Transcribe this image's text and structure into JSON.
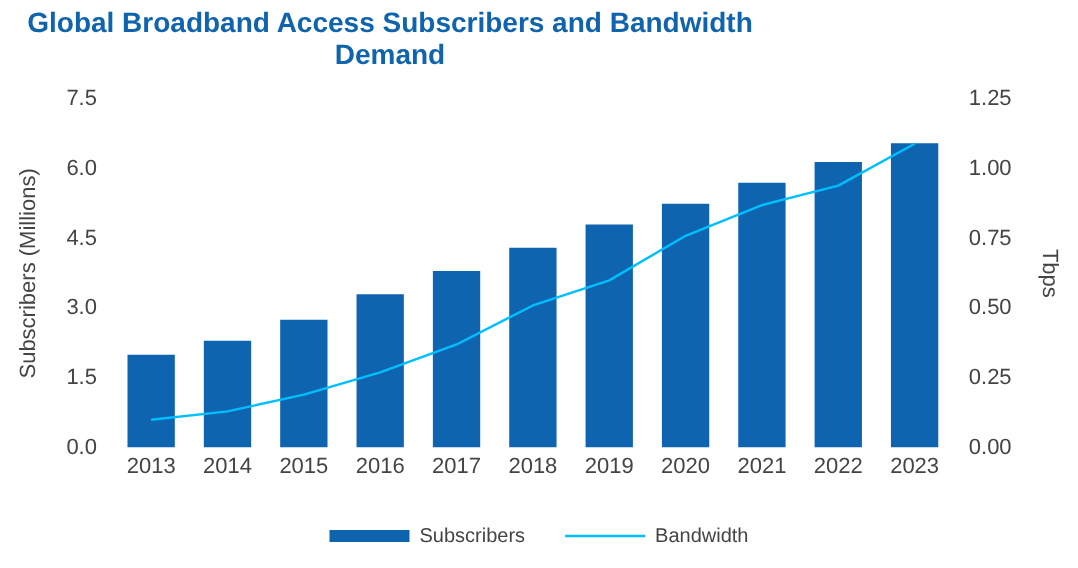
{
  "chart_data": {
    "type": "bar",
    "title": "Global Broadband Access Subscribers and Bandwidth Demand",
    "ylabel": "Subscribers (Millions)",
    "y2label": "Tbps",
    "categories": [
      "2013",
      "2014",
      "2015",
      "2016",
      "2017",
      "2018",
      "2019",
      "2020",
      "2021",
      "2022",
      "2023"
    ],
    "series": [
      {
        "name": "Subscribers",
        "color": "#0f64b0",
        "values": [
          2.0,
          2.3,
          2.75,
          3.3,
          3.8,
          4.3,
          4.8,
          5.25,
          5.7,
          6.15,
          6.55
        ]
      },
      {
        "name": "Bandwidth",
        "type": "line",
        "axis": "y2",
        "color": "#00bfff",
        "values": [
          0.1,
          0.13,
          0.19,
          0.27,
          0.37,
          0.51,
          0.6,
          0.76,
          0.87,
          0.94,
          1.09
        ]
      }
    ],
    "ylim": [
      0,
      7.5
    ],
    "yticks": [
      {
        "value": 0,
        "label": "0.0"
      },
      {
        "value": 1.5,
        "label": "1.5"
      },
      {
        "value": 3,
        "label": "3.0"
      },
      {
        "value": 4.5,
        "label": "4.5"
      },
      {
        "value": 6,
        "label": "6.0"
      },
      {
        "value": 7.5,
        "label": "7.5"
      }
    ],
    "y2lim": [
      0,
      1.25
    ],
    "y2ticks": [
      {
        "value": 0,
        "label": "0.00"
      },
      {
        "value": 0.25,
        "label": "0.25"
      },
      {
        "value": 0.5,
        "label": "0.50"
      },
      {
        "value": 0.75,
        "label": "0.75"
      },
      {
        "value": 1,
        "label": "1.00"
      },
      {
        "value": 1.25,
        "label": "1.25"
      }
    ],
    "grid": false,
    "legend": "bottom",
    "marker": "none",
    "line_style": "solid"
  }
}
